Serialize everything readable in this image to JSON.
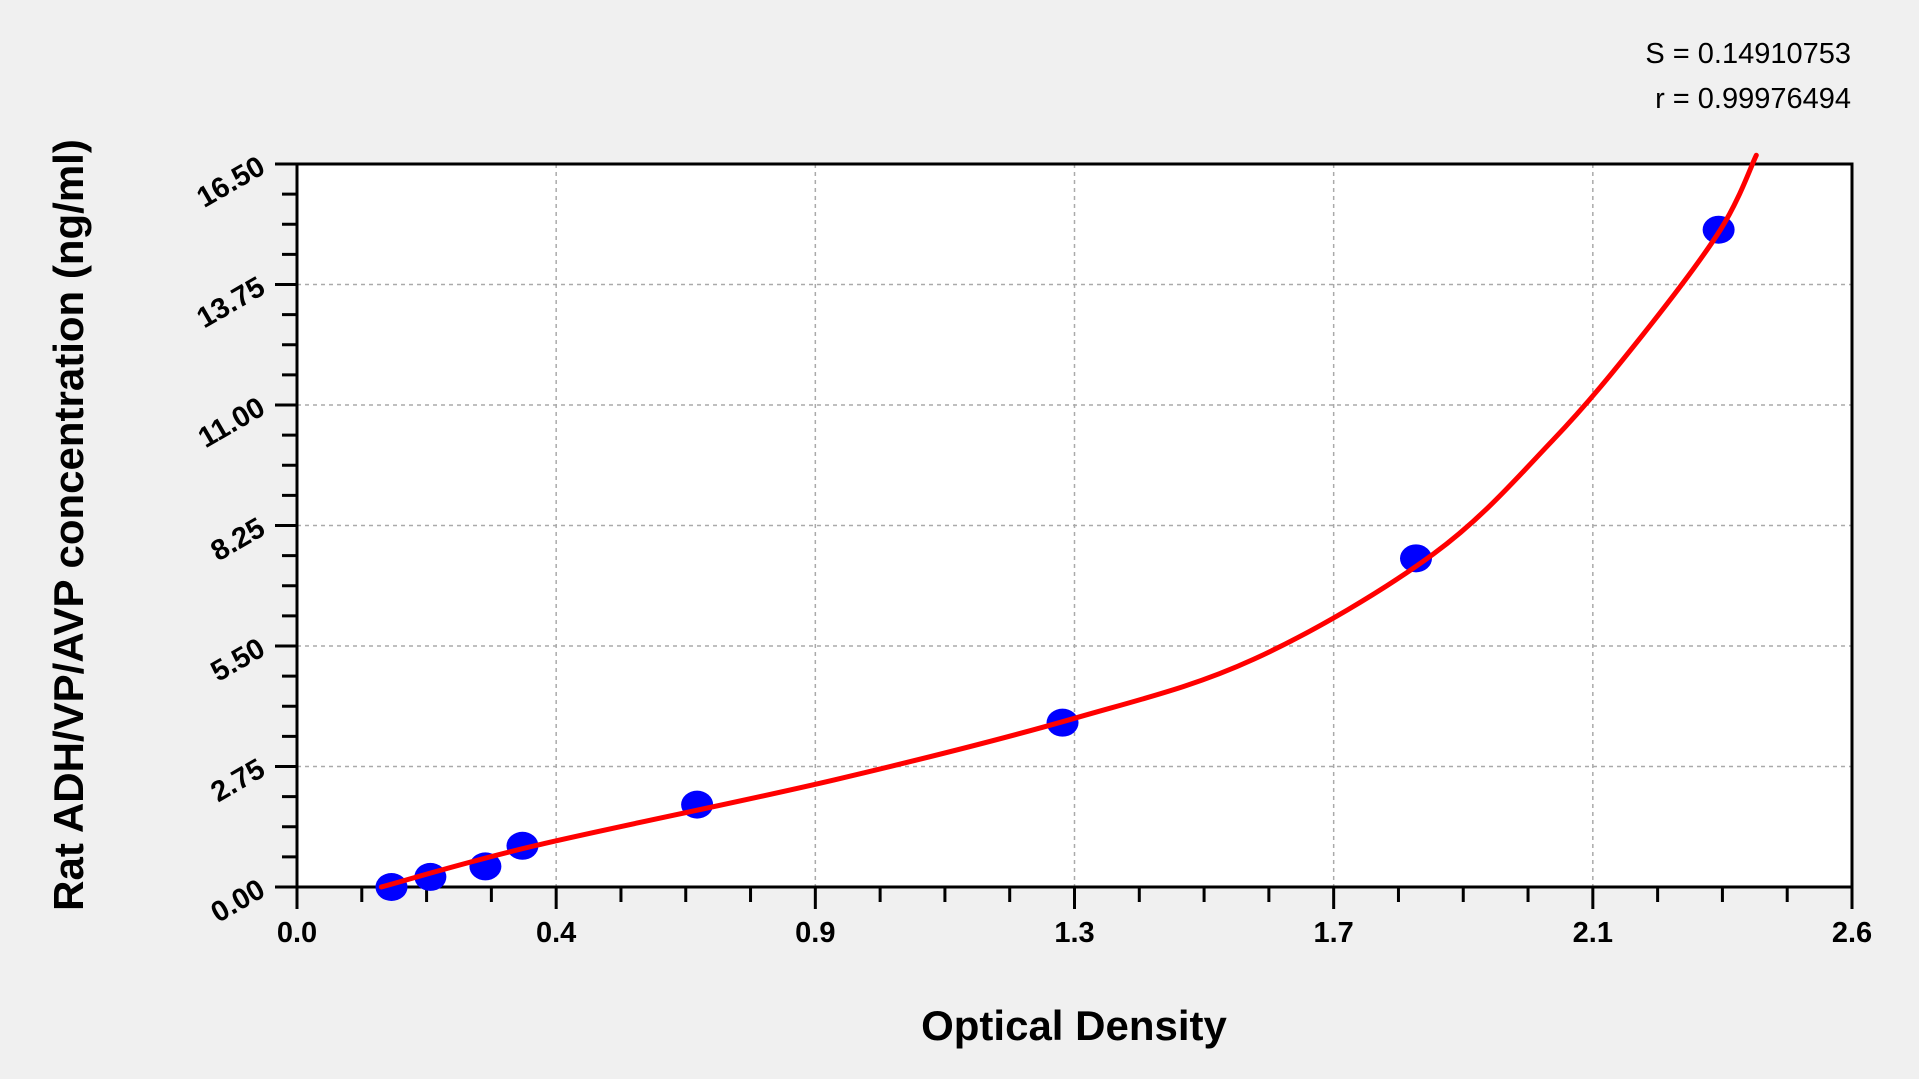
{
  "chart_data": {
    "type": "scatter",
    "xlabel": "Optical Density",
    "ylabel": "Rat ADH/VP/AVP concentration (ng/ml)",
    "xlim": [
      0,
      2.6
    ],
    "ylim": [
      0,
      16.5
    ],
    "x_tick_labels": [
      "0.0",
      "0.4",
      "0.9",
      "1.3",
      "1.7",
      "2.1",
      "2.6"
    ],
    "y_tick_labels": [
      "0.00",
      "2.75",
      "5.50",
      "8.25",
      "11.00",
      "13.75",
      "16.50"
    ],
    "grid": true,
    "points": {
      "color": "#0000ff",
      "x": [
        0.158,
        0.223,
        0.315,
        0.377,
        0.669,
        1.28,
        1.871,
        2.377
      ],
      "y": [
        0,
        0.23,
        0.47,
        0.94,
        1.88,
        3.75,
        7.5,
        15
      ]
    },
    "fit_curve": {
      "color": "#ff0000",
      "x": [
        0.141,
        0.4,
        0.9,
        1.3,
        1.6,
        1.9,
        2.1,
        2.25,
        2.38,
        2.44
      ],
      "y": [
        0,
        0.95,
        2.45,
        3.85,
        5.2,
        7.6,
        10.2,
        12.6,
        15.0,
        16.7
      ]
    },
    "annotations": {
      "s": "S = 0.14910753",
      "r": "r = 0.99976494"
    }
  }
}
